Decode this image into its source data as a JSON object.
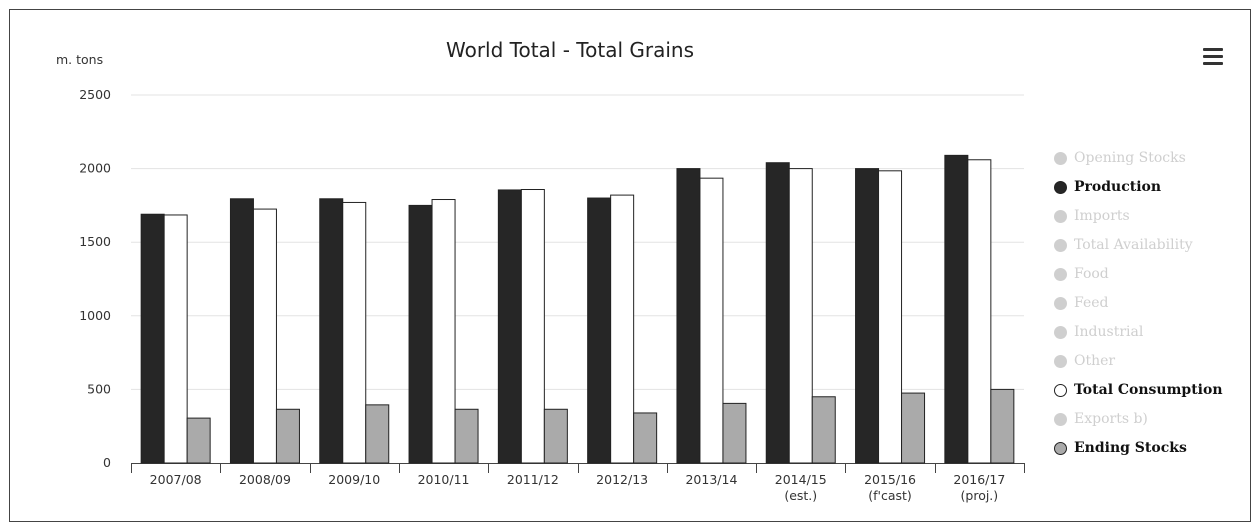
{
  "chart_data": {
    "type": "bar",
    "title": "World Total - Total Grains",
    "ylabel": "m. tons",
    "ylim": [
      0,
      2500
    ],
    "yticks": [
      0,
      500,
      1000,
      1500,
      2000,
      2500
    ],
    "grid": true,
    "legend_position": "right",
    "categories": [
      [
        "2007/08"
      ],
      [
        "2008/09"
      ],
      [
        "2009/10"
      ],
      [
        "2010/11"
      ],
      [
        "2011/12"
      ],
      [
        "2012/13"
      ],
      [
        "2013/14"
      ],
      [
        "2014/15",
        "(est.)"
      ],
      [
        "2015/16",
        "(f'cast)"
      ],
      [
        "2016/17",
        "(proj.)"
      ]
    ],
    "series": [
      {
        "name": "Production",
        "color": "#262626",
        "values": [
          1690,
          1795,
          1795,
          1750,
          1855,
          1800,
          2000,
          2040,
          2000,
          2090
        ]
      },
      {
        "name": "Total Consumption",
        "color": "#ffffff",
        "values": [
          1685,
          1725,
          1770,
          1790,
          1858,
          1820,
          1935,
          2000,
          1985,
          2060
        ]
      },
      {
        "name": "Ending Stocks",
        "color": "#aaaaaa",
        "values": [
          305,
          365,
          395,
          365,
          365,
          340,
          405,
          450,
          475,
          500
        ]
      }
    ]
  },
  "legend": [
    {
      "label": "Opening Stocks",
      "active": false
    },
    {
      "label": "Production",
      "active": true,
      "color": "#262626"
    },
    {
      "label": "Imports",
      "active": false
    },
    {
      "label": "Total Availability",
      "active": false
    },
    {
      "label": "Food",
      "active": false
    },
    {
      "label": "Feed",
      "active": false
    },
    {
      "label": "Industrial",
      "active": false
    },
    {
      "label": "Other",
      "active": false
    },
    {
      "label": "Total Consumption",
      "active": true,
      "color": "#ffffff"
    },
    {
      "label": "Exports b)",
      "active": false
    },
    {
      "label": "Ending Stocks",
      "active": true,
      "color": "#aaaaaa"
    }
  ],
  "menu_icon": "hamburger-menu-icon",
  "colors": {
    "inactive": "#cfcfcf",
    "axis": "#444444",
    "grid": "#e3e3e3"
  }
}
